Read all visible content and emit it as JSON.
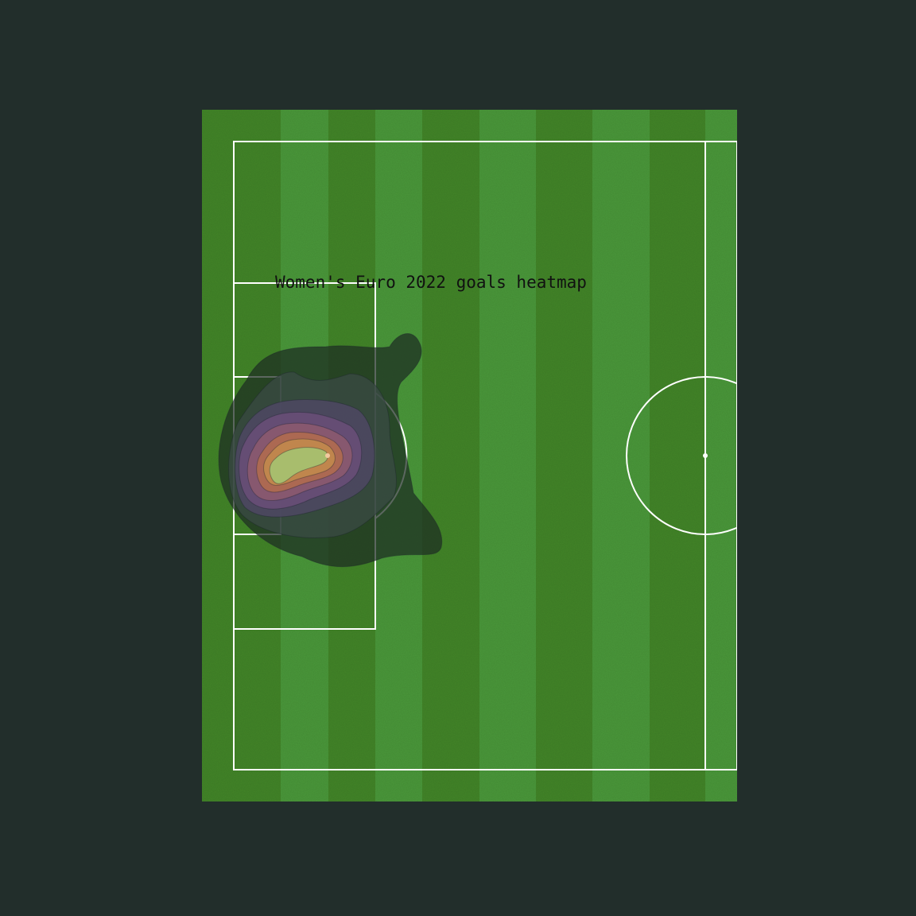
{
  "colors": {
    "background": "#222e2b",
    "grass_light": "#4a983a",
    "grass_dark": "#428528",
    "lines": "#ffffff"
  },
  "chart_data": {
    "type": "heatmap",
    "title": "Women's Euro 2022 goals heatmap",
    "pitch": {
      "length": 120,
      "width": 80,
      "view": "left-half",
      "stripes": true
    },
    "density_peak": {
      "x": 9,
      "y": 42
    },
    "levels": [
      {
        "level": 1,
        "color": "#1d2c22",
        "opacity": 0.72
      },
      {
        "level": 2,
        "color": "#3a4a44",
        "opacity": 0.78
      },
      {
        "level": 3,
        "color": "#4e4863",
        "opacity": 0.85
      },
      {
        "level": 4,
        "color": "#6a4f78",
        "opacity": 0.85
      },
      {
        "level": 5,
        "color": "#8c5a6e",
        "opacity": 0.88
      },
      {
        "level": 6,
        "color": "#b06b4f",
        "opacity": 0.9
      },
      {
        "level": 7,
        "color": "#c28a4c",
        "opacity": 0.9
      },
      {
        "level": 8,
        "color": "#a7c06f",
        "opacity": 0.95
      }
    ],
    "grid": false,
    "legend": "none"
  }
}
